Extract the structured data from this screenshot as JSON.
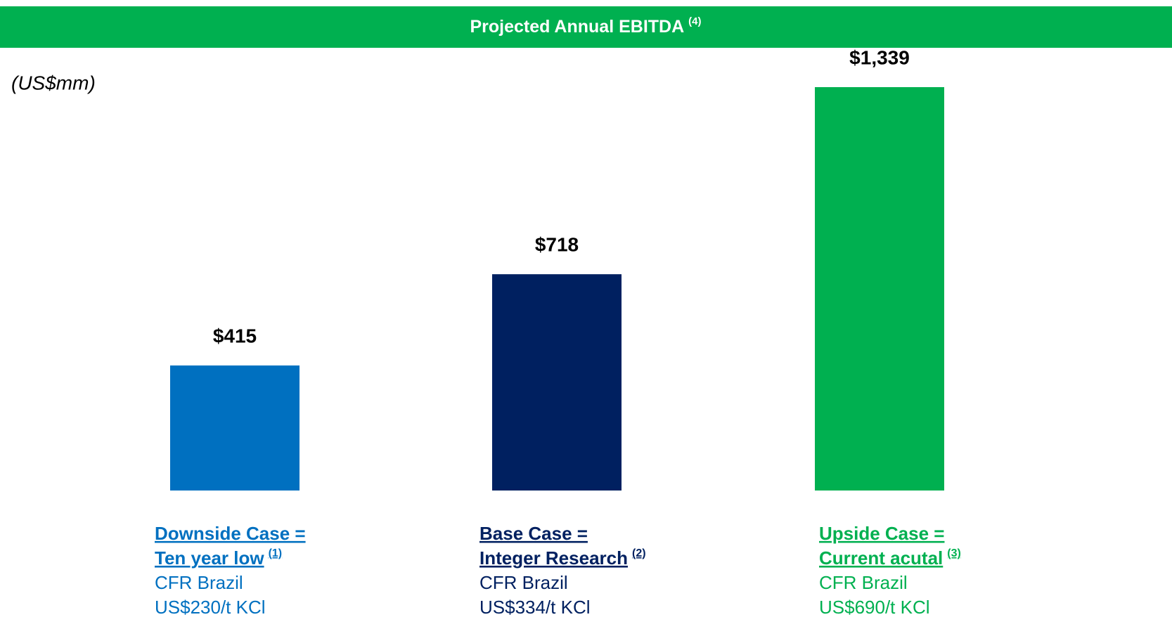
{
  "chart_data": {
    "type": "bar",
    "title": "Projected Annual EBITDA",
    "title_note": "(4)",
    "unit_label": "(US$mm)",
    "categories": [
      "Downside Case =",
      "Base Case =",
      "Upside Case ="
    ],
    "subheadings": [
      "Ten year low",
      "Integer Research",
      "Current acutal"
    ],
    "notes": [
      "(1)",
      "(2)",
      "(3)"
    ],
    "locations": [
      "CFR Brazil",
      "CFR Brazil",
      "CFR Brazil"
    ],
    "prices": [
      "US$230/t KCl",
      "US$334/t KCl",
      "US$690/t KCl"
    ],
    "values": [
      415,
      718,
      1339
    ],
    "value_labels": [
      "$415",
      "$718",
      "$1,339"
    ],
    "colors": [
      "#0070c0",
      "#002060",
      "#00b050"
    ],
    "header_color": "#00b050"
  }
}
